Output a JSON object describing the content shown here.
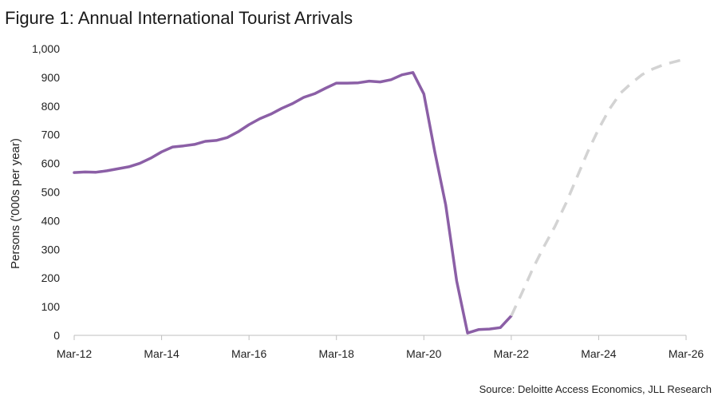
{
  "title": "Figure 1: Annual International Tourist Arrivals",
  "source": "Source: Deloitte Access Economics, JLL Research",
  "colors": {
    "actual": "#8B5FA6",
    "forecast": "#D3D3D3",
    "axis": "#BFBFBF",
    "text": "#222222"
  },
  "chart_data": {
    "type": "line",
    "title": "Figure 1: Annual International Tourist Arrivals",
    "xlabel": "",
    "ylabel": "Persons ('000s per year)",
    "x_tick_labels": [
      "Mar-12",
      "Mar-14",
      "Mar-16",
      "Mar-18",
      "Mar-20",
      "Mar-22",
      "Mar-24",
      "Mar-26"
    ],
    "y_tick_labels": [
      "0",
      "100",
      "200",
      "300",
      "400",
      "500",
      "600",
      "700",
      "800",
      "900",
      "1,000"
    ],
    "ylim": [
      0,
      1000
    ],
    "xlim": [
      "2012-03",
      "2026-03"
    ],
    "grid": false,
    "series": [
      {
        "style": "solid",
        "color": "#8B5FA6",
        "x": [
          "2012-03",
          "2012-06",
          "2012-09",
          "2012-12",
          "2013-03",
          "2013-06",
          "2013-09",
          "2013-12",
          "2014-03",
          "2014-06",
          "2014-09",
          "2014-12",
          "2015-03",
          "2015-06",
          "2015-09",
          "2015-12",
          "2016-03",
          "2016-06",
          "2016-09",
          "2016-12",
          "2017-03",
          "2017-06",
          "2017-09",
          "2017-12",
          "2018-03",
          "2018-06",
          "2018-09",
          "2018-12",
          "2019-03",
          "2019-06",
          "2019-09",
          "2019-12",
          "2020-03",
          "2020-06",
          "2020-09",
          "2020-12",
          "2021-03",
          "2021-06",
          "2021-09",
          "2021-12",
          "2022-03"
        ],
        "values": [
          568,
          570,
          569,
          574,
          581,
          588,
          600,
          618,
          640,
          657,
          661,
          666,
          677,
          680,
          690,
          710,
          735,
          756,
          772,
          792,
          809,
          830,
          843,
          862,
          880,
          880,
          881,
          887,
          884,
          892,
          909,
          917,
          842,
          640,
          455,
          190,
          8,
          20,
          22,
          27,
          68
        ]
      },
      {
        "style": "dashed",
        "color": "#D3D3D3",
        "x": [
          "2022-03",
          "2022-06",
          "2022-09",
          "2022-12",
          "2023-03",
          "2023-06",
          "2023-09",
          "2023-12",
          "2024-03",
          "2024-06",
          "2024-09",
          "2024-12",
          "2025-03",
          "2025-06",
          "2025-09",
          "2025-12",
          "2026-03"
        ],
        "values": [
          68,
          150,
          235,
          310,
          380,
          460,
          550,
          640,
          720,
          790,
          845,
          880,
          910,
          930,
          945,
          955,
          965
        ]
      }
    ]
  }
}
